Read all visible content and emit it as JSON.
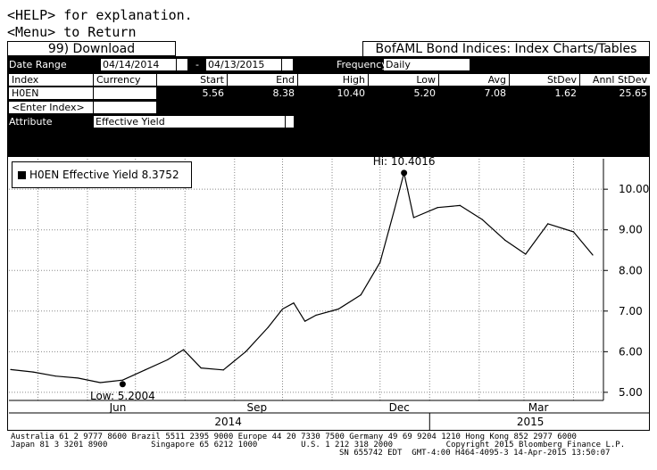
{
  "command": {
    "help_line": "<HELP> for explanation.",
    "menu_line": "<Menu> to Return"
  },
  "toolbar": {
    "download_label": "99) Download",
    "title": "BofAML Bond Indices: Index Charts/Tables"
  },
  "params": {
    "date_range_label": "Date Range",
    "start_date": "04/14/2014",
    "range_separator": "-",
    "end_date": "04/13/2015",
    "frequency_label": "Frequency",
    "frequency_value": "Daily",
    "attribute_label": "Attribute",
    "attribute_value": "Effective Yield"
  },
  "table": {
    "headers": [
      "Index",
      "Currency",
      "Start",
      "End",
      "High",
      "Low",
      "Avg",
      "StDev",
      "Annl StDev"
    ],
    "row": {
      "index": "H0EN",
      "currency": "",
      "start": "5.56",
      "end": "8.38",
      "high": "10.40",
      "low": "5.20",
      "avg": "7.08",
      "stdev": "1.62",
      "annl_stdev": "25.65"
    },
    "enter_index": "<Enter Index>"
  },
  "legend": {
    "label": "H0EN Effective Yield 8.3752"
  },
  "chart_data": {
    "type": "line",
    "series": [
      {
        "name": "H0EN Effective Yield",
        "x": [
          "2014-04-14",
          "2014-04-28",
          "2014-05-12",
          "2014-05-26",
          "2014-06-09",
          "2014-06-23",
          "2014-07-07",
          "2014-07-21",
          "2014-07-31",
          "2014-08-11",
          "2014-08-25",
          "2014-09-08",
          "2014-09-22",
          "2014-10-01",
          "2014-10-08",
          "2014-10-15",
          "2014-10-22",
          "2014-11-05",
          "2014-11-19",
          "2014-12-01",
          "2014-12-10",
          "2014-12-16",
          "2014-12-22",
          "2015-01-06",
          "2015-01-20",
          "2015-02-03",
          "2015-02-17",
          "2015-03-02",
          "2015-03-16",
          "2015-04-01",
          "2015-04-13"
        ],
        "values": [
          5.56,
          5.5,
          5.4,
          5.35,
          5.24,
          5.3,
          5.55,
          5.8,
          6.05,
          5.6,
          5.55,
          6.0,
          6.6,
          7.05,
          7.2,
          6.75,
          6.9,
          7.05,
          7.4,
          8.2,
          9.5,
          10.4,
          9.3,
          9.55,
          9.6,
          9.25,
          8.75,
          8.4,
          9.15,
          8.95,
          8.38
        ]
      }
    ],
    "annotations": [
      {
        "label": "Hi: 10.4016",
        "x": "2014-12-16",
        "y": 10.4016
      },
      {
        "label": "Low: 5.2004",
        "x": "2014-06-23",
        "y": 5.2004
      }
    ],
    "x_tick_labels": [
      "Jun",
      "Sep",
      "Dec",
      "Mar"
    ],
    "x_year_labels": [
      "2014",
      "2015"
    ],
    "y_tick_labels": [
      "5.00",
      "6.00",
      "7.00",
      "8.00",
      "9.00",
      "10.00"
    ],
    "ylim": [
      4.8,
      10.75
    ],
    "grid": true
  },
  "footer": {
    "line1": "Australia 61 2 9777 8600 Brazil 5511 2395 9000 Europe 44 20 7330 7500 Germany 49 69 9204 1210 Hong Kong 852 2977 6000",
    "line2": "Japan 81 3 3201 8900         Singapore 65 6212 1000         U.S. 1 212 318 2000           Copyright 2015 Bloomberg Finance L.P.",
    "line3": "SN 655742 EDT  GMT-4:00 H464-4095-3 14-Apr-2015 13:50:07"
  }
}
